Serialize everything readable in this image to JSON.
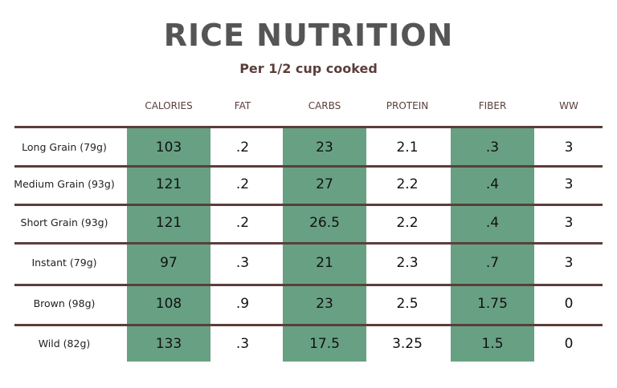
{
  "title": "RICE NUTRITION",
  "subtitle": "Per 1/2 cup cooked",
  "colors": {
    "accent": "#68a083",
    "rule": "#5a3e3a"
  },
  "columns": [
    "CALORIES",
    "FAT",
    "CARBS",
    "PROTEIN",
    "FIBER",
    "WW"
  ],
  "rows": [
    {
      "label": "Long Grain (79g)",
      "values": [
        "103",
        ".2",
        "23",
        "2.1",
        ".3",
        "3"
      ]
    },
    {
      "label": "Medium Grain (93g)",
      "values": [
        "121",
        ".2",
        "27",
        "2.2",
        ".4",
        "3"
      ]
    },
    {
      "label": "Short Grain (93g)",
      "values": [
        "121",
        ".2",
        "26.5",
        "2.2",
        ".4",
        "3"
      ]
    },
    {
      "label": "Instant (79g)",
      "values": [
        "97",
        ".3",
        "21",
        "2.3",
        ".7",
        "3"
      ]
    },
    {
      "label": "Brown (98g)",
      "values": [
        "108",
        ".9",
        "23",
        "2.5",
        "1.75",
        "0"
      ]
    },
    {
      "label": "Wild (82g)",
      "values": [
        "133",
        ".3",
        "17.5",
        "3.25",
        "1.5",
        "0"
      ]
    }
  ]
}
